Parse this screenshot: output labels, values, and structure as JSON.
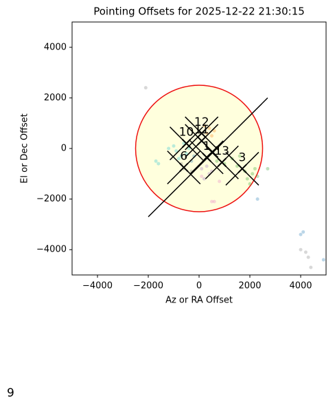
{
  "chart_data": {
    "type": "scatter",
    "title": "Pointing Offsets for 2025-12-22 21:30:15",
    "x_label": "Az or RA Offset",
    "y_label": "El or Dec Offset",
    "xlim": [
      -5000,
      5000
    ],
    "ylim": [
      -5000,
      5000
    ],
    "xticks": [
      {
        "value": -4000,
        "label": "−4000"
      },
      {
        "value": -2000,
        "label": "−2000"
      },
      0,
      2000,
      4000
    ],
    "yticks": [
      {
        "value": -4000,
        "label": "−4000"
      },
      {
        "value": -2000,
        "label": "−2000"
      },
      0,
      2000,
      4000
    ],
    "circle": {
      "x": 0,
      "y": 0,
      "r": 2500,
      "color": "#ee1111",
      "fill": "#ffffdd"
    },
    "line": {
      "x": [
        -2000,
        2700
      ],
      "values": [
        -2700,
        2000
      ],
      "color": "#000000"
    },
    "series": [
      {
        "color": "#17becf",
        "x": [
          -900,
          -1000,
          -700,
          -1200,
          -1700,
          -1600,
          -600,
          -400,
          -800,
          -500
        ],
        "values": [
          -100,
          100,
          -300,
          0,
          -500,
          -600,
          200,
          0,
          -400,
          -200
        ]
      },
      {
        "color": "#1f77b4",
        "x": [
          -300,
          -200,
          2300,
          4100,
          4000,
          4900
        ],
        "values": [
          -500,
          -300,
          -2000,
          -3300,
          -3400,
          -4400
        ]
      },
      {
        "color": "#2ca02c",
        "x": [
          1000,
          1500,
          2100,
          2000,
          1800,
          2200,
          2700,
          1300,
          700,
          1600,
          1900,
          2300
        ],
        "values": [
          -600,
          -700,
          -1000,
          -1400,
          -900,
          -800,
          -800,
          -400,
          -500,
          -300,
          -1200,
          -1100
        ]
      },
      {
        "color": "#ff7f0e",
        "x": [
          300,
          400,
          200,
          500,
          600
        ],
        "values": [
          600,
          800,
          900,
          500,
          700
        ]
      },
      {
        "color": "#9467bd",
        "x": [
          300,
          400,
          200,
          500,
          100
        ],
        "values": [
          -700,
          -1000,
          -1200,
          -900,
          -800
        ]
      },
      {
        "color": "#e377c2",
        "x": [
          600,
          500,
          100,
          800
        ],
        "values": [
          -2100,
          -2100,
          -1100,
          -1300
        ]
      },
      {
        "color": "#7f7f7f",
        "x": [
          -2100,
          -600,
          -700,
          4000,
          4200,
          4300,
          4400,
          -300
        ],
        "values": [
          2400,
          -800,
          -600,
          -4000,
          -4100,
          -4300,
          -4700,
          -900
        ]
      }
    ],
    "markers": [
      {
        "x": 100,
        "y": 600,
        "label": "12"
      },
      {
        "x": -500,
        "y": 200,
        "label": "10"
      },
      {
        "x": -600,
        "y": -750,
        "label": "6"
      },
      {
        "x": 1700,
        "y": -800,
        "label": "3"
      },
      {
        "x": 900,
        "y": -550,
        "label": "13"
      },
      {
        "x": 300,
        "y": -350,
        "label": "1"
      },
      {
        "x": 100,
        "y": 300,
        "label": "11"
      }
    ]
  },
  "footer": "9"
}
